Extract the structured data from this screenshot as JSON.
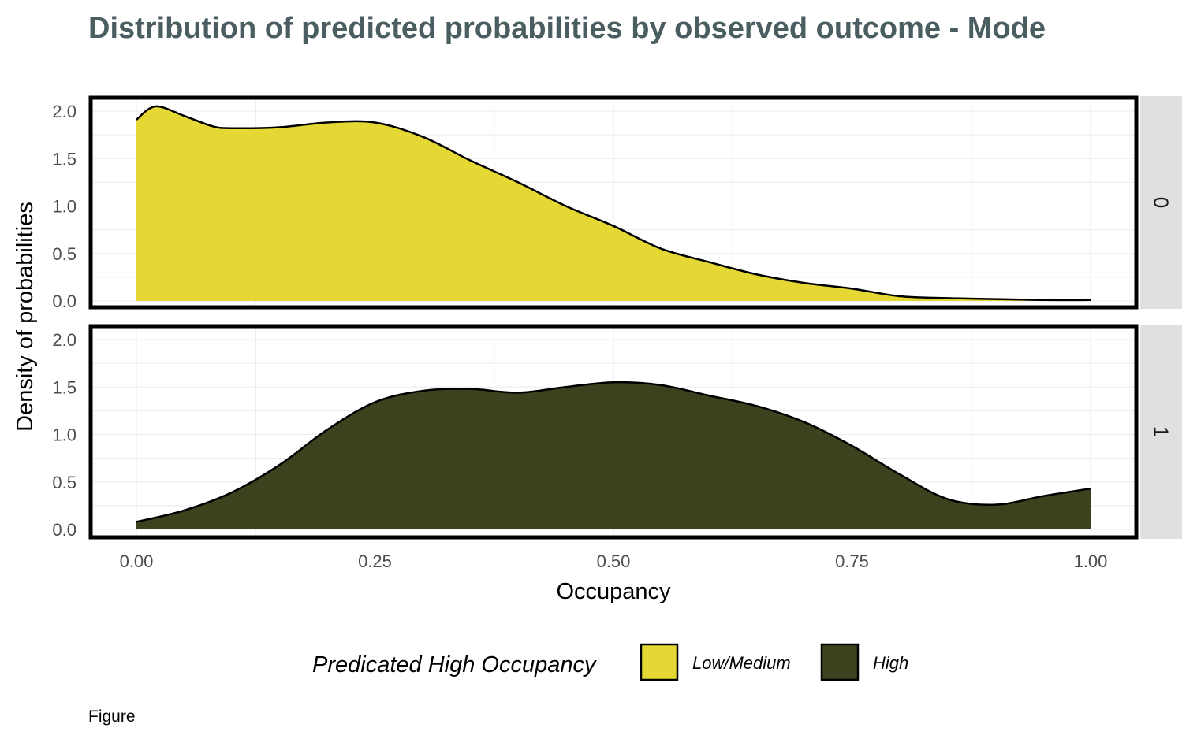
{
  "chart_data": {
    "type": "area",
    "subtype": "density",
    "title": "Distribution of predicted probabilities by observed outcome - Mode",
    "xlabel": "Occupancy",
    "ylabel": "Density of probabilities",
    "caption": "Figure",
    "xlim": [
      0,
      1
    ],
    "ylim": [
      0,
      2.1
    ],
    "x_ticks": [
      0,
      0.25,
      0.5,
      0.75,
      1
    ],
    "x_tick_labels": [
      "0.00",
      "0.25",
      "0.50",
      "0.75",
      "1.00"
    ],
    "y_ticks": [
      0,
      0.5,
      1,
      1.5,
      2
    ],
    "y_tick_labels": [
      "0.0",
      "0.5",
      "1.0",
      "1.5",
      "2.0"
    ],
    "grid": true,
    "legend": {
      "title": "Predicated High Occupancy",
      "position": "bottom",
      "entries": [
        {
          "label": "Low/Medium",
          "color": "#e5d835"
        },
        {
          "label": "High",
          "color": "#3a421e"
        }
      ]
    },
    "panels": [
      {
        "strip_label": "0",
        "fill": "#e5d835",
        "x": [
          0,
          0.02,
          0.05,
          0.08,
          0.1,
          0.15,
          0.2,
          0.25,
          0.3,
          0.35,
          0.4,
          0.45,
          0.5,
          0.55,
          0.6,
          0.65,
          0.7,
          0.75,
          0.8,
          0.85,
          0.9,
          0.95,
          1.0
        ],
        "y": [
          1.91,
          2.05,
          1.95,
          1.84,
          1.82,
          1.83,
          1.88,
          1.88,
          1.73,
          1.48,
          1.25,
          1.0,
          0.79,
          0.55,
          0.41,
          0.28,
          0.19,
          0.13,
          0.05,
          0.03,
          0.02,
          0.01,
          0.01
        ]
      },
      {
        "strip_label": "1",
        "fill": "#3a421e",
        "x": [
          0,
          0.05,
          0.1,
          0.15,
          0.2,
          0.25,
          0.3,
          0.35,
          0.4,
          0.45,
          0.5,
          0.55,
          0.6,
          0.65,
          0.7,
          0.75,
          0.8,
          0.85,
          0.9,
          0.95,
          1.0
        ],
        "y": [
          0.08,
          0.2,
          0.39,
          0.68,
          1.05,
          1.34,
          1.46,
          1.48,
          1.44,
          1.5,
          1.55,
          1.52,
          1.41,
          1.3,
          1.13,
          0.88,
          0.58,
          0.32,
          0.26,
          0.35,
          0.43
        ]
      }
    ]
  }
}
